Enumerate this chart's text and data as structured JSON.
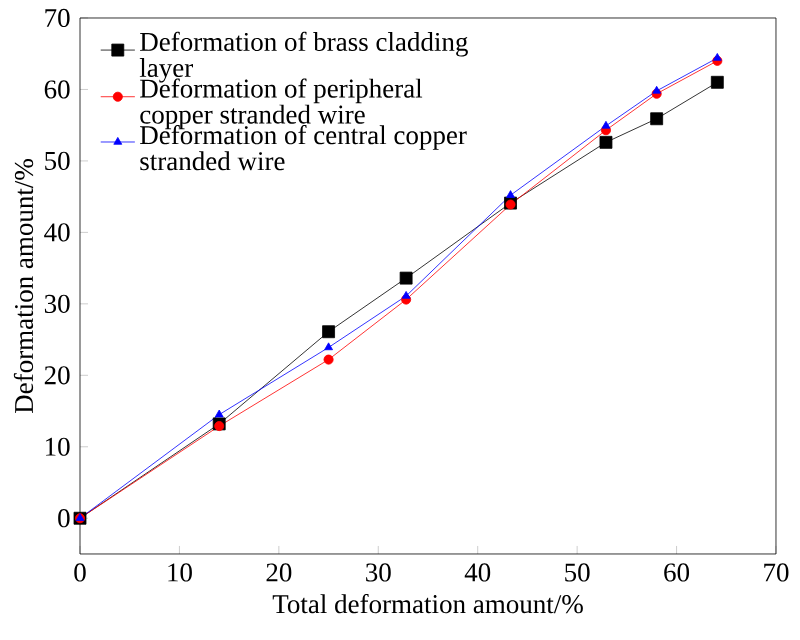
{
  "chart_data": {
    "type": "line",
    "xlabel": "Total deformation amount/%",
    "ylabel": "Deformation amount/%",
    "xlim": [
      0,
      70
    ],
    "ylim": [
      -5,
      70
    ],
    "xticks": [
      0,
      10,
      20,
      30,
      40,
      50,
      60,
      70
    ],
    "yticks": [
      0,
      10,
      20,
      30,
      40,
      50,
      60,
      70
    ],
    "legend": "top left",
    "grid": false,
    "series": [
      {
        "name": "Deformation of brass cladding layer",
        "color": "#000000",
        "marker": "square",
        "x": [
          0,
          14,
          25,
          32.8,
          43.3,
          52.9,
          58,
          64.1
        ],
        "values": [
          0,
          13.2,
          26.1,
          33.6,
          44.1,
          52.6,
          55.9,
          61.0
        ]
      },
      {
        "name": "Deformation of peripheral copper stranded wire",
        "color": "#ff0000",
        "marker": "circle",
        "x": [
          0,
          14,
          25,
          32.8,
          43.3,
          52.9,
          58,
          64.1
        ],
        "values": [
          0,
          12.9,
          22.2,
          30.6,
          43.9,
          54.3,
          59.4,
          64.0
        ]
      },
      {
        "name": "Deformation of central copper stranded wire",
        "color": "#0000ff",
        "marker": "triangle",
        "x": [
          0,
          14,
          25,
          32.8,
          43.3,
          52.9,
          58,
          64.1
        ],
        "values": [
          0,
          14.5,
          23.9,
          31.1,
          45.2,
          54.9,
          59.8,
          64.4
        ]
      }
    ]
  }
}
